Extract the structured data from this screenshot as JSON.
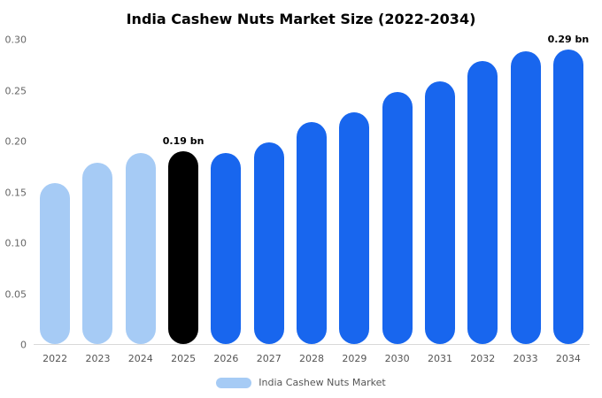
{
  "chart_data": {
    "type": "bar",
    "title": "India Cashew Nuts Market Size (2022-2034)",
    "categories": [
      "2022",
      "2023",
      "2024",
      "2025",
      "2026",
      "2027",
      "2028",
      "2029",
      "2030",
      "2031",
      "2032",
      "2033",
      "2034"
    ],
    "values": [
      0.158,
      0.178,
      0.188,
      0.19,
      0.188,
      0.198,
      0.218,
      0.228,
      0.248,
      0.258,
      0.278,
      0.288,
      0.29
    ],
    "bar_colors": [
      "#a6cbf5",
      "#a6cbf5",
      "#a6cbf5",
      "#000000",
      "#1866ee",
      "#1866ee",
      "#1866ee",
      "#1866ee",
      "#1866ee",
      "#1866ee",
      "#1866ee",
      "#1866ee",
      "#1866ee"
    ],
    "xlabel": "",
    "ylabel": "",
    "ylim": [
      0,
      0.3
    ],
    "yticks": [
      0,
      0.05,
      0.1,
      0.15,
      0.2,
      0.25,
      0.3
    ],
    "ytick_labels": [
      "0",
      "0.05",
      "0.10",
      "0.15",
      "0.20",
      "0.25",
      "0.30"
    ],
    "grid": false,
    "annotations": [
      {
        "category": "2025",
        "text": "0.19 bn"
      },
      {
        "category": "2034",
        "text": "0.29 bn"
      }
    ],
    "legend": {
      "position": "bottom",
      "label": "India Cashew Nuts Market",
      "swatch_color": "#a6cbf5"
    }
  },
  "colors": {
    "background": "#ffffff",
    "light_blue": "#a6cbf5",
    "highlight_black": "#000000",
    "primary_blue": "#1866ee",
    "axis_text": "#666666",
    "axis_line": "#d9d9d9"
  }
}
